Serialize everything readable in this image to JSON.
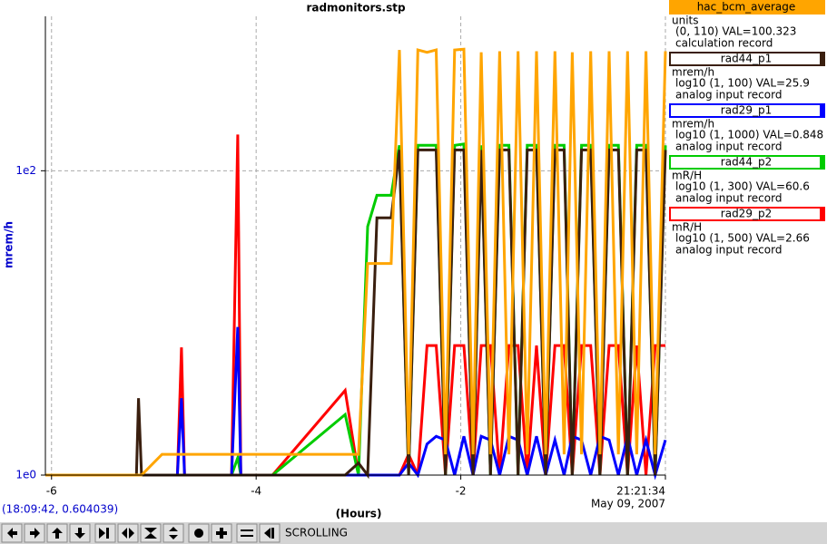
{
  "chart_data": {
    "type": "line",
    "title": "radmonitors.stp",
    "ylabel": "mrem/h",
    "xlabel": "(Hours)",
    "x_date": "May 09, 2007",
    "ylog": true,
    "grid": true,
    "xlim": [
      -6.06,
      0
    ],
    "xticks": [
      -6,
      -4,
      -2,
      {
        "value": 0,
        "label": "21:21:34"
      }
    ],
    "ylim": [
      1,
      1035
    ],
    "yticks": [
      {
        "value": 1,
        "label": "1e0"
      },
      {
        "value": 100,
        "label": "1e2"
      }
    ],
    "x": [
      -6.06,
      -5.17,
      -5.15,
      -5.12,
      -4.92,
      -4.77,
      -4.73,
      -4.7,
      -4.37,
      -4.24,
      -4.18,
      -4.15,
      -4.11,
      -3.84,
      -3.13,
      -3.0,
      -2.91,
      -2.82,
      -2.68,
      -2.6,
      -2.51,
      -2.42,
      -2.33,
      -2.24,
      -2.15,
      -2.06,
      -1.97,
      -1.88,
      -1.8,
      -1.71,
      -1.62,
      -1.53,
      -1.44,
      -1.35,
      -1.26,
      -1.17,
      -1.08,
      -0.99,
      -0.91,
      -0.82,
      -0.73,
      -0.64,
      -0.55,
      -0.46,
      -0.37,
      -0.28,
      -0.19,
      -0.1,
      0
    ],
    "series": [
      {
        "name": "hac_bcm_average",
        "color": "#ffa500",
        "unit": "units",
        "info": "(0, 110) VAL=100.323",
        "record": "calculation record",
        "values": [
          1,
          1,
          1,
          1,
          1.37,
          1.37,
          1.37,
          1.37,
          1.37,
          1.37,
          1.37,
          1.37,
          1.37,
          1.37,
          1.37,
          1.37,
          24.6,
          24.6,
          24.6,
          622,
          1.37,
          622,
          600,
          622,
          1.37,
          622,
          630,
          1.37,
          600,
          1.37,
          610,
          1.37,
          610,
          1.37,
          610,
          1.37,
          610,
          1.37,
          600,
          1.37,
          610,
          1.37,
          610,
          1.37,
          610,
          1.37,
          610,
          1.37,
          610
        ]
      },
      {
        "name": "rad44_p1",
        "color": "#3a1f0f",
        "unit": "mrem/h",
        "info": "log10 (1, 100) VAL=25.9",
        "record": "analog input record",
        "values": [
          1,
          1,
          3.2,
          1,
          1,
          1,
          1,
          1,
          1,
          1,
          1,
          1,
          1,
          1,
          1,
          1.2,
          1,
          49,
          49,
          137,
          1,
          137,
          137,
          137,
          1,
          137,
          137,
          1,
          137,
          1,
          137,
          137,
          1,
          137,
          137,
          1,
          137,
          137,
          1,
          137,
          137,
          1,
          137,
          137,
          1,
          137,
          137,
          1,
          137
        ]
      },
      {
        "name": "rad29_p1",
        "color": "#0000ff",
        "unit": "mrem/h",
        "info": "log10 (1, 1000) VAL=0.848",
        "record": "analog input record",
        "values": [
          1,
          1,
          1,
          1,
          1,
          1,
          3.2,
          1,
          1,
          1,
          9.4,
          1,
          1,
          1,
          1,
          1,
          1,
          1,
          1,
          1,
          1.2,
          1,
          1.6,
          1.8,
          1.7,
          1,
          1.8,
          1,
          1.8,
          1.7,
          1,
          1.8,
          1.7,
          1,
          1.8,
          1,
          1.7,
          1,
          1.8,
          1.7,
          1,
          1.8,
          1.7,
          1,
          1.8,
          1,
          1.7,
          1,
          1.7
        ]
      },
      {
        "name": "rad44_p2",
        "color": "#00cc00",
        "unit": "mR/H",
        "info": "log10 (1, 300) VAL=60.6",
        "record": "analog input record",
        "values": [
          1,
          1,
          1,
          1,
          1,
          1,
          1,
          1,
          1,
          1,
          1.3,
          1,
          1,
          1,
          2.5,
          1,
          43,
          69,
          69,
          147,
          1,
          147,
          147,
          147,
          1,
          147,
          150,
          1,
          147,
          1,
          147,
          147,
          1,
          147,
          147,
          1,
          147,
          147,
          1,
          147,
          147,
          1,
          147,
          147,
          1,
          147,
          147,
          1,
          147
        ]
      },
      {
        "name": "rad29_p2",
        "color": "#ff0000",
        "unit": "mR/H",
        "info": "log10 (1, 500) VAL=2.66",
        "record": "analog input record",
        "values": [
          1,
          1,
          1,
          1,
          1,
          1,
          6.9,
          1,
          1,
          1,
          173,
          1,
          1,
          1,
          3.6,
          1,
          1,
          1,
          1,
          1,
          1.37,
          1,
          7.1,
          7.1,
          1,
          7.1,
          7.1,
          1,
          7.1,
          7.1,
          1,
          7.1,
          7.1,
          1,
          7.1,
          1,
          7.1,
          7.1,
          1,
          7.1,
          7.1,
          1,
          7.1,
          7.1,
          1,
          7.1,
          1,
          7.1,
          7.1
        ]
      }
    ]
  },
  "status": {
    "cursor": "(18:09:42, 0.604039)",
    "mode": "SCROLLING"
  }
}
